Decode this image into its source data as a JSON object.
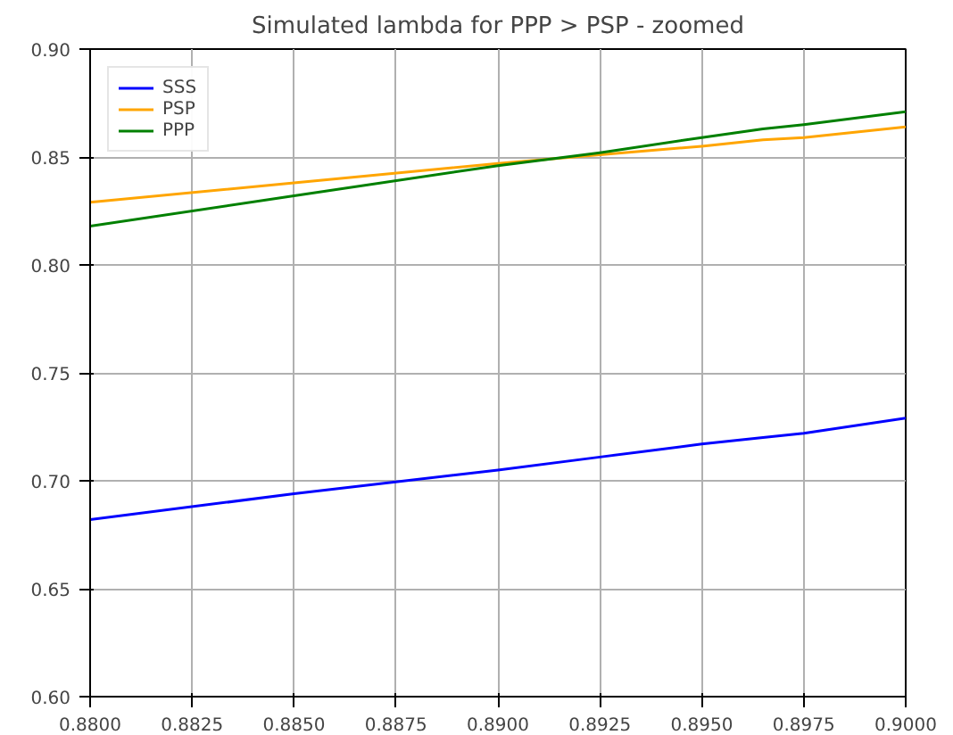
{
  "chart_data": {
    "type": "line",
    "title": "Simulated lambda for PPP > PSP - zoomed",
    "x": [
      0.88,
      0.885,
      0.89,
      0.8925,
      0.895,
      0.8965,
      0.8975,
      0.9
    ],
    "series": [
      {
        "name": "SSS",
        "color": "#0000ff",
        "values": [
          0.682,
          0.694,
          0.705,
          0.711,
          0.717,
          0.72,
          0.722,
          0.729
        ]
      },
      {
        "name": "PSP",
        "color": "#ffa500",
        "values": [
          0.829,
          0.838,
          0.847,
          0.851,
          0.855,
          0.858,
          0.859,
          0.864
        ]
      },
      {
        "name": "PPP",
        "color": "#008000",
        "values": [
          0.818,
          0.832,
          0.846,
          0.852,
          0.859,
          0.863,
          0.865,
          0.871
        ]
      }
    ],
    "xlim": [
      0.88,
      0.9
    ],
    "ylim": [
      0.6,
      0.9
    ],
    "xticks": [
      {
        "value": 0.88,
        "label": "0.8800"
      },
      {
        "value": 0.8825,
        "label": "0.8825"
      },
      {
        "value": 0.885,
        "label": "0.8850"
      },
      {
        "value": 0.8875,
        "label": "0.8875"
      },
      {
        "value": 0.89,
        "label": "0.8900"
      },
      {
        "value": 0.8925,
        "label": "0.8925"
      },
      {
        "value": 0.895,
        "label": "0.8950"
      },
      {
        "value": 0.8975,
        "label": "0.8975"
      },
      {
        "value": 0.9,
        "label": "0.9000"
      }
    ],
    "yticks": [
      {
        "value": 0.6,
        "label": "0.60"
      },
      {
        "value": 0.65,
        "label": "0.65"
      },
      {
        "value": 0.7,
        "label": "0.70"
      },
      {
        "value": 0.75,
        "label": "0.75"
      },
      {
        "value": 0.8,
        "label": "0.80"
      },
      {
        "value": 0.85,
        "label": "0.85"
      },
      {
        "value": 0.9,
        "label": "0.90"
      }
    ],
    "grid": true,
    "legend": "top left",
    "line_style": "solid",
    "marker": "none"
  }
}
